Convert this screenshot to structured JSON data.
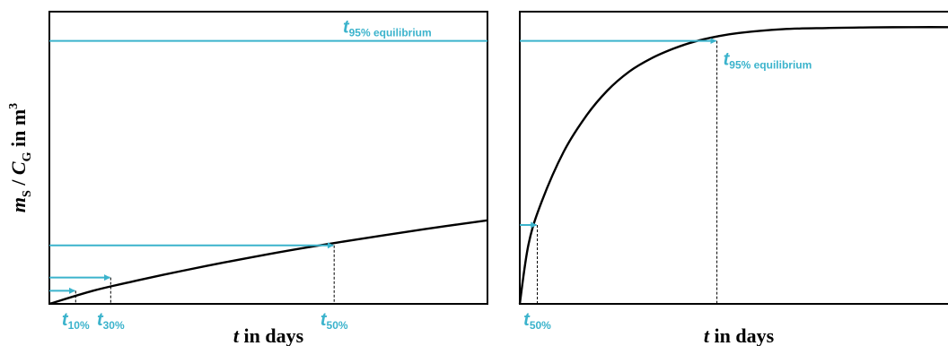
{
  "chart_data": [
    {
      "type": "line",
      "panel": "left",
      "title": "",
      "xlabel": {
        "var": "t",
        "rest": " in days"
      },
      "ylabel": {
        "m": "m",
        "m_sub": "S",
        "sep": " / ",
        "c": "C",
        "c_sub": "G",
        "rest": " in m",
        "sup": "3"
      },
      "xlim": [
        0,
        1
      ],
      "ylim": [
        0,
        1
      ],
      "curve": {
        "x": [
          0,
          0.1,
          0.2,
          0.3,
          0.4,
          0.5,
          0.6,
          0.7,
          0.8,
          0.9,
          1.0
        ],
        "y": [
          0,
          0.045,
          0.08,
          0.112,
          0.142,
          0.17,
          0.196,
          0.22,
          0.243,
          0.265,
          0.286
        ]
      },
      "reference_lines": [
        {
          "label": "t",
          "sub": "95% equilibrium",
          "y": 0.9,
          "x_end": 1.0,
          "label_position": "above-right"
        },
        {
          "label": "t",
          "sub": "50%",
          "x": 0.65,
          "y": 0.2
        },
        {
          "label": "t",
          "sub": "30%",
          "x": 0.14,
          "y": 0.09
        },
        {
          "label": "t",
          "sub": "10%",
          "x": 0.06,
          "y": 0.045
        }
      ],
      "colors": {
        "curve": "#000000",
        "annotation": "#3bb3cc"
      }
    },
    {
      "type": "line",
      "panel": "right",
      "title": "",
      "xlabel": {
        "var": "t",
        "rest": " in days"
      },
      "xlim": [
        0,
        1
      ],
      "ylim": [
        0,
        1
      ],
      "curve": {
        "x": [
          0,
          0.02,
          0.05,
          0.1,
          0.15,
          0.2,
          0.25,
          0.3,
          0.35,
          0.4,
          0.45,
          0.5,
          0.6,
          0.7,
          0.8,
          0.9,
          1.0
        ],
        "y": [
          0,
          0.205,
          0.35,
          0.52,
          0.64,
          0.73,
          0.795,
          0.84,
          0.873,
          0.898,
          0.915,
          0.927,
          0.94,
          0.944,
          0.946,
          0.947,
          0.947
        ]
      },
      "reference_lines": [
        {
          "label": "t",
          "sub": "95% equilibrium",
          "x": 0.45,
          "y": 0.9
        },
        {
          "label": "t",
          "sub": "50%",
          "x": 0.04,
          "y": 0.27
        }
      ],
      "colors": {
        "curve": "#000000",
        "annotation": "#3bb3cc"
      }
    }
  ]
}
